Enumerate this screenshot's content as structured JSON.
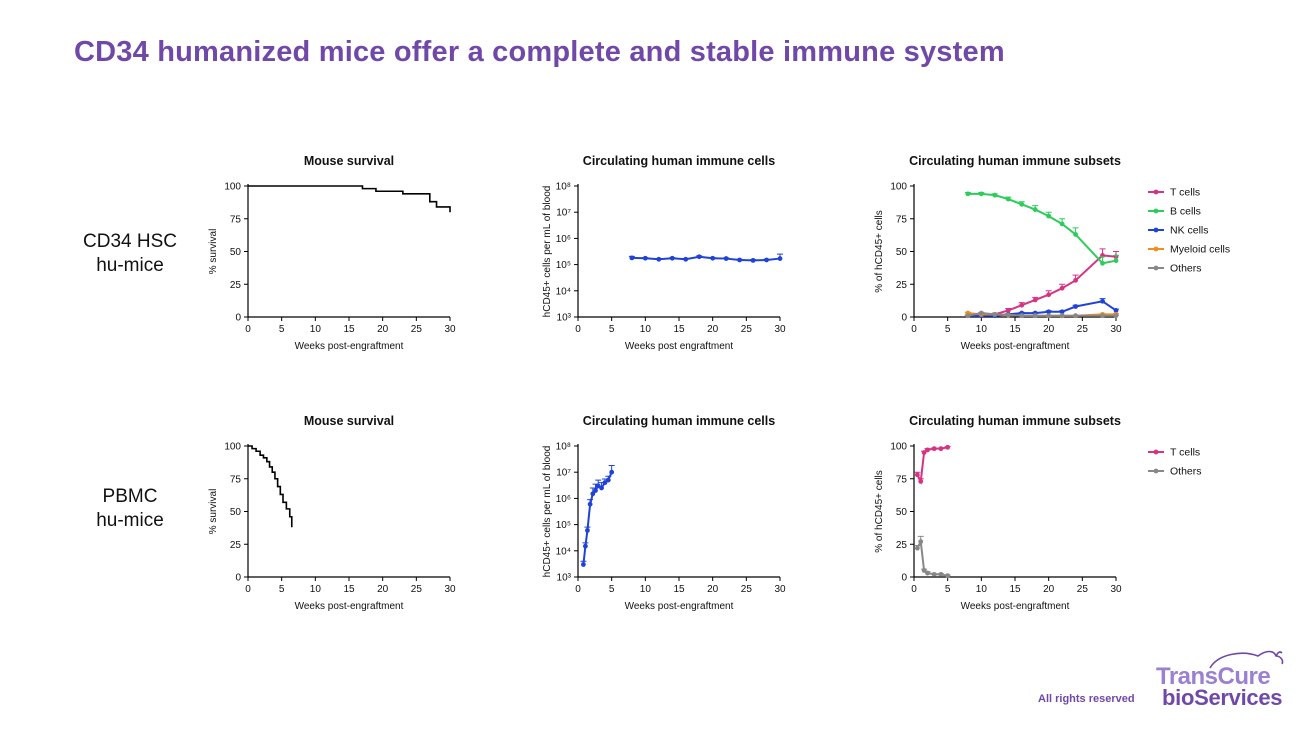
{
  "slide": {
    "title": "CD34 humanized mice offer a complete and stable immune system",
    "rows": [
      {
        "label_line1": "CD34 HSC",
        "label_line2": "hu-mice"
      },
      {
        "label_line1": "PBMC",
        "label_line2": "hu-mice"
      }
    ],
    "footer": {
      "rights": "All rights reserved"
    },
    "logo": {
      "line1": "TransCure",
      "line2": "bioServices",
      "color_primary": "#7048a8",
      "color_light": "#9b7fd0"
    }
  },
  "chart_data": [
    {
      "id": "cd34-survival",
      "type": "line",
      "step": true,
      "title": "Mouse survival",
      "xlabel": "Weeks post-engraftment",
      "ylabel": "% survival",
      "xlim": [
        0,
        30
      ],
      "ylim": [
        0,
        100
      ],
      "xticks": [
        0,
        5,
        10,
        15,
        20,
        25,
        30
      ],
      "yticks": [
        0,
        25,
        50,
        75,
        100
      ],
      "series": [
        {
          "color": "#000000",
          "markers": false,
          "x": [
            0,
            16,
            17,
            19,
            23,
            27,
            28,
            30,
            30
          ],
          "y": [
            100,
            100,
            98,
            96,
            94,
            88,
            84,
            84,
            80
          ]
        }
      ]
    },
    {
      "id": "cd34-circulating",
      "type": "line",
      "title": "Circulating human immune cells",
      "xlabel": "Weeks post engraftment",
      "ylabel": "hCD45+ cells per mL of blood",
      "log": true,
      "xlim": [
        0,
        30
      ],
      "ylim": [
        1000,
        100000000
      ],
      "xticks": [
        0,
        5,
        10,
        15,
        20,
        25,
        30
      ],
      "yticks": [
        1000,
        10000,
        100000,
        1000000,
        10000000,
        100000000
      ],
      "series": [
        {
          "color": "#1f43d6",
          "markers": true,
          "x": [
            8,
            10,
            12,
            14,
            16,
            18,
            20,
            22,
            24,
            26,
            28,
            30
          ],
          "y": [
            180000,
            175000,
            160000,
            175000,
            160000,
            200000,
            175000,
            170000,
            150000,
            145000,
            150000,
            170000
          ],
          "err": [
            25000,
            10000,
            10000,
            10000,
            10000,
            15000,
            10000,
            10000,
            10000,
            10000,
            10000,
            80000
          ]
        }
      ]
    },
    {
      "id": "cd34-subsets",
      "type": "line",
      "title": "Circulating human immune subsets",
      "xlabel": "Weeks post-engraftment",
      "ylabel": "% of hCD45+ cells",
      "xlim": [
        0,
        30
      ],
      "ylim": [
        0,
        100
      ],
      "xticks": [
        0,
        5,
        10,
        15,
        20,
        25,
        30
      ],
      "yticks": [
        0,
        25,
        50,
        75,
        100
      ],
      "legend": "right",
      "series": [
        {
          "name": "T cells",
          "color": "#d63384",
          "markers": true,
          "x": [
            8,
            10,
            12,
            14,
            16,
            18,
            20,
            22,
            24,
            28,
            30
          ],
          "y": [
            1,
            1,
            2,
            5,
            9,
            13,
            17,
            22,
            28,
            47,
            46
          ],
          "err": [
            0.5,
            0.5,
            1,
            1.5,
            2,
            2,
            3,
            3,
            4,
            5,
            4
          ]
        },
        {
          "name": "B cells",
          "color": "#2ecc5a",
          "markers": true,
          "x": [
            8,
            10,
            12,
            14,
            16,
            18,
            20,
            22,
            24,
            28,
            30
          ],
          "y": [
            94,
            94,
            93,
            90,
            86,
            82,
            77,
            71,
            63,
            41,
            43
          ],
          "err": [
            1,
            1,
            1,
            1.5,
            2,
            3,
            3,
            4,
            5,
            5,
            4
          ]
        },
        {
          "name": "NK cells",
          "color": "#1f43d6",
          "markers": true,
          "x": [
            8,
            10,
            12,
            14,
            16,
            18,
            20,
            22,
            24,
            28,
            30
          ],
          "y": [
            1,
            1,
            1,
            2,
            3,
            3,
            4,
            4,
            8,
            12,
            5
          ],
          "err": [
            0.3,
            0.3,
            0.3,
            0.5,
            0.5,
            0.5,
            0.8,
            0.8,
            1,
            2,
            1
          ]
        },
        {
          "name": "Myeloid cells",
          "color": "#f28c1a",
          "markers": true,
          "x": [
            8,
            10,
            12,
            14,
            16,
            18,
            20,
            22,
            24,
            28,
            30
          ],
          "y": [
            3,
            2,
            2,
            1.5,
            1,
            1,
            1,
            1,
            1,
            2,
            2
          ],
          "err": [
            0.5,
            0.5,
            0.5,
            0.3,
            0.3,
            0.3,
            0.3,
            0.3,
            0.3,
            0.5,
            0.5
          ]
        },
        {
          "name": "Others",
          "color": "#888888",
          "markers": true,
          "x": [
            8,
            10,
            12,
            14,
            16,
            18,
            20,
            22,
            24,
            28,
            30
          ],
          "y": [
            1,
            3,
            2,
            1.5,
            1,
            1,
            1,
            1,
            1,
            1,
            1
          ],
          "err": [
            0.3,
            0.5,
            0.5,
            0.3,
            0.3,
            0.3,
            0.3,
            0.3,
            0.3,
            0.3,
            0.3
          ]
        }
      ]
    },
    {
      "id": "pbmc-survival",
      "type": "line",
      "step": true,
      "title": "Mouse survival",
      "xlabel": "Weeks post-engraftment",
      "ylabel": "% survival",
      "xlim": [
        0,
        30
      ],
      "ylim": [
        0,
        100
      ],
      "xticks": [
        0,
        5,
        10,
        15,
        20,
        25,
        30
      ],
      "yticks": [
        0,
        25,
        50,
        75,
        100
      ],
      "series": [
        {
          "color": "#000000",
          "markers": false,
          "x": [
            0,
            0.6,
            1.2,
            1.8,
            2.3,
            2.8,
            3.2,
            3.6,
            4.0,
            4.4,
            4.8,
            5.2,
            5.7,
            6.2,
            6.5,
            6.5
          ],
          "y": [
            100,
            98,
            96,
            93,
            91,
            88,
            84,
            80,
            75,
            69,
            63,
            57,
            52,
            46,
            42,
            38
          ]
        }
      ]
    },
    {
      "id": "pbmc-circulating",
      "type": "line",
      "title": "Circulating human immune cells",
      "xlabel": "Weeks post-engraftment",
      "ylabel": "hCD45+ cells per mL of blood",
      "log": true,
      "xlim": [
        0,
        30
      ],
      "ylim": [
        1000,
        100000000
      ],
      "xticks": [
        0,
        5,
        10,
        15,
        20,
        25,
        30
      ],
      "yticks": [
        1000,
        10000,
        100000,
        1000000,
        10000000,
        100000000
      ],
      "series": [
        {
          "color": "#1f43d6",
          "markers": true,
          "x": [
            0.8,
            1.1,
            1.4,
            1.8,
            2.2,
            2.6,
            3.0,
            3.5,
            4.0,
            4.5,
            5.0
          ],
          "y": [
            3000,
            15000,
            60000,
            600000,
            1500000,
            2000000,
            3000000,
            2500000,
            4000000,
            5000000,
            10000000
          ],
          "err": [
            1000,
            5000,
            20000,
            300000,
            1000000,
            1500000,
            2000000,
            1500000,
            1500000,
            2000000,
            8000000
          ]
        }
      ]
    },
    {
      "id": "pbmc-subsets",
      "type": "line",
      "title": "Circulating human immune subsets",
      "xlabel": "Weeks post-engraftment",
      "ylabel": "% of hCD45+ cells",
      "xlim": [
        0,
        30
      ],
      "ylim": [
        0,
        100
      ],
      "xticks": [
        0,
        5,
        10,
        15,
        20,
        25,
        30
      ],
      "yticks": [
        0,
        25,
        50,
        75,
        100
      ],
      "legend": "right",
      "series": [
        {
          "name": "T cells",
          "color": "#d63384",
          "markers": true,
          "x": [
            0.5,
            1.0,
            1.5,
            2.0,
            3.0,
            4.0,
            5.0
          ],
          "y": [
            78,
            73,
            95,
            97,
            98,
            98,
            99
          ],
          "err": [
            2,
            2,
            1,
            1,
            0.5,
            0.5,
            0.5
          ]
        },
        {
          "name": "Others",
          "color": "#888888",
          "markers": true,
          "x": [
            0.5,
            1.0,
            1.5,
            2.0,
            3.0,
            4.0,
            5.0
          ],
          "y": [
            22,
            27,
            5,
            3,
            2,
            2,
            1
          ],
          "err": [
            2,
            4,
            1,
            1,
            0.5,
            0.5,
            0.5
          ]
        }
      ]
    }
  ]
}
